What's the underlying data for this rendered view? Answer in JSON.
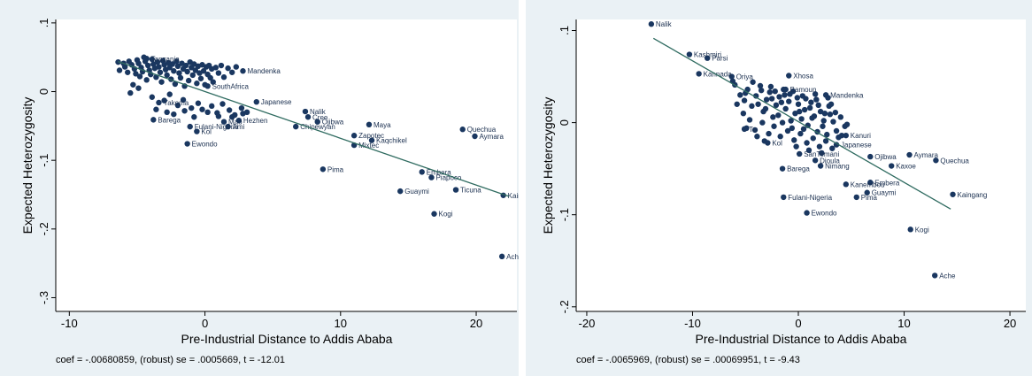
{
  "chart_data": [
    {
      "type": "scatter",
      "xlabel": "Pre-Industrial Distance to Addis Ababa",
      "ylabel": "Expected Heterozygosity",
      "xlim": [
        -11,
        23
      ],
      "ylim": [
        -0.32,
        0.105
      ],
      "xticks": [
        -10,
        0,
        10,
        20
      ],
      "xtick_labels": [
        "-10",
        "0",
        "10",
        "20"
      ],
      "yticks": [
        0.1,
        0,
        -0.1,
        -0.2,
        -0.3
      ],
      "ytick_labels": [
        ".1",
        "0",
        "-.1",
        "-.2",
        "-.3"
      ],
      "grid": false,
      "legend": "none",
      "footnote": "coef = -.00680859, (robust) se = .0005669, t = -12.01",
      "fit_line": {
        "x": [
          -6.4,
          22.4
        ],
        "y": [
          0.0436,
          -0.1524
        ]
      },
      "labeled_points": [
        {
          "label": "Tanzania",
          "x": -4.3,
          "y": 0.048
        },
        {
          "label": "Mandenka",
          "x": 2.8,
          "y": 0.03
        },
        {
          "label": "SouthAfrica",
          "x": 0.2,
          "y": 0.008
        },
        {
          "label": "Japanese",
          "x": 3.8,
          "y": -0.015
        },
        {
          "label": "Yakoma",
          "x": -3.4,
          "y": -0.016
        },
        {
          "label": "Barega",
          "x": -3.8,
          "y": -0.041
        },
        {
          "label": "Fulani-Nigeria",
          "x": -1.1,
          "y": -0.051
        },
        {
          "label": "Kol",
          "x": -0.6,
          "y": -0.058
        },
        {
          "label": "Mao",
          "x": 1.4,
          "y": -0.044
        },
        {
          "label": "Hezhen",
          "x": 2.5,
          "y": -0.042
        },
        {
          "label": "Ami",
          "x": 1.7,
          "y": -0.051
        },
        {
          "label": "Ewondo",
          "x": -1.3,
          "y": -0.076
        },
        {
          "label": "Nalik",
          "x": 7.4,
          "y": -0.029
        },
        {
          "label": "Cree",
          "x": 7.6,
          "y": -0.037
        },
        {
          "label": "Ojibwa",
          "x": 8.3,
          "y": -0.044
        },
        {
          "label": "Chipewyan",
          "x": 6.7,
          "y": -0.051
        },
        {
          "label": "Maya",
          "x": 12.1,
          "y": -0.048
        },
        {
          "label": "Zapotec",
          "x": 11.0,
          "y": -0.064
        },
        {
          "label": "Kaqchikel",
          "x": 12.3,
          "y": -0.071
        },
        {
          "label": "Mixtec",
          "x": 11.0,
          "y": -0.078
        },
        {
          "label": "Quechua",
          "x": 19.0,
          "y": -0.055
        },
        {
          "label": "Aymara",
          "x": 19.9,
          "y": -0.065
        },
        {
          "label": "Pima",
          "x": 8.7,
          "y": -0.113
        },
        {
          "label": "Embera",
          "x": 16.0,
          "y": -0.117
        },
        {
          "label": "Piapoco",
          "x": 16.7,
          "y": -0.125
        },
        {
          "label": "Guaymi",
          "x": 14.4,
          "y": -0.145
        },
        {
          "label": "Ticuna",
          "x": 18.5,
          "y": -0.143
        },
        {
          "label": "Kaingang",
          "x": 22.0,
          "y": -0.151
        },
        {
          "label": "Kogi",
          "x": 16.9,
          "y": -0.178
        },
        {
          "label": "Ache",
          "x": 21.9,
          "y": -0.24
        }
      ],
      "cluster_points": [
        [
          -6.4,
          0.043
        ],
        [
          -6.3,
          0.031
        ],
        [
          -6.0,
          0.041
        ],
        [
          -5.9,
          0.036
        ],
        [
          -5.7,
          0.028
        ],
        [
          -5.6,
          0.044
        ],
        [
          -5.4,
          0.039
        ],
        [
          -5.2,
          0.033
        ],
        [
          -5.1,
          0.026
        ],
        [
          -5.0,
          0.046
        ],
        [
          -4.9,
          0.041
        ],
        [
          -4.8,
          0.022
        ],
        [
          -4.7,
          0.035
        ],
        [
          -4.6,
          0.029
        ],
        [
          -4.5,
          0.05
        ],
        [
          -4.4,
          0.044
        ],
        [
          -4.3,
          0.017
        ],
        [
          -4.2,
          0.038
        ],
        [
          -4.1,
          0.031
        ],
        [
          -4.0,
          0.025
        ],
        [
          -3.9,
          0.047
        ],
        [
          -3.8,
          0.04
        ],
        [
          -3.7,
          0.034
        ],
        [
          -3.6,
          0.021
        ],
        [
          -3.5,
          0.043
        ],
        [
          -3.4,
          0.036
        ],
        [
          -3.3,
          0.028
        ],
        [
          -3.2,
          0.014
        ],
        [
          -3.1,
          0.045
        ],
        [
          -3.0,
          0.039
        ],
        [
          -2.9,
          0.032
        ],
        [
          -2.8,
          0.024
        ],
        [
          -2.7,
          0.042
        ],
        [
          -2.6,
          0.035
        ],
        [
          -2.5,
          0.018
        ],
        [
          -2.4,
          0.04
        ],
        [
          -2.3,
          0.03
        ],
        [
          -2.2,
          0.011
        ],
        [
          -2.1,
          0.044
        ],
        [
          -2.0,
          0.037
        ],
        [
          -1.9,
          0.027
        ],
        [
          -1.8,
          0.02
        ],
        [
          -1.7,
          0.041
        ],
        [
          -1.6,
          0.033
        ],
        [
          -1.5,
          0.008
        ],
        [
          -1.4,
          0.038
        ],
        [
          -1.3,
          0.029
        ],
        [
          -1.2,
          0.016
        ],
        [
          -1.1,
          0.043
        ],
        [
          -1.0,
          0.035
        ],
        [
          -0.9,
          0.024
        ],
        [
          -0.8,
          0.04
        ],
        [
          -0.7,
          0.031
        ],
        [
          -0.6,
          0.012
        ],
        [
          -0.5,
          0.037
        ],
        [
          -0.4,
          0.027
        ],
        [
          -0.3,
          0.019
        ],
        [
          -0.2,
          0.039
        ],
        [
          -0.1,
          0.03
        ],
        [
          0.0,
          0.01
        ],
        [
          0.1,
          0.036
        ],
        [
          0.2,
          0.025
        ],
        [
          0.3,
          0.038
        ],
        [
          0.4,
          0.02
        ],
        [
          0.5,
          0.033
        ],
        [
          0.6,
          0.014
        ],
        [
          0.8,
          0.035
        ],
        [
          1.0,
          0.027
        ],
        [
          1.2,
          0.038
        ],
        [
          1.4,
          0.021
        ],
        [
          1.7,
          0.034
        ],
        [
          2.0,
          0.028
        ],
        [
          2.3,
          0.036
        ],
        [
          -5.3,
          0.01
        ],
        [
          -4.9,
          0.005
        ],
        [
          -5.5,
          -0.002
        ],
        [
          -3.9,
          -0.008
        ],
        [
          -3.0,
          -0.013
        ],
        [
          -2.6,
          -0.004
        ],
        [
          -2.0,
          -0.02
        ],
        [
          -1.6,
          -0.012
        ],
        [
          -1.0,
          -0.024
        ],
        [
          -0.5,
          -0.017
        ],
        [
          -0.2,
          -0.026
        ],
        [
          0.5,
          -0.021
        ],
        [
          0.9,
          -0.031
        ],
        [
          1.3,
          -0.018
        ],
        [
          1.8,
          -0.027
        ],
        [
          2.2,
          -0.034
        ],
        [
          2.7,
          -0.024
        ],
        [
          3.1,
          -0.03
        ],
        [
          -3.6,
          -0.026
        ],
        [
          -2.8,
          -0.03
        ],
        [
          -2.3,
          -0.033
        ],
        [
          -1.5,
          -0.028
        ],
        [
          -0.8,
          -0.037
        ],
        [
          0.2,
          -0.03
        ],
        [
          1.0,
          -0.036
        ],
        [
          2.0,
          -0.037
        ],
        [
          2.8,
          -0.032
        ]
      ]
    },
    {
      "type": "scatter",
      "xlabel": "Pre-Industrial Distance to Addis Ababa",
      "ylabel": "Expected Heterozygosity",
      "xlim": [
        -21,
        21.5
      ],
      "ylim": [
        -0.205,
        0.112
      ],
      "xticks": [
        -20,
        -10,
        0,
        10,
        20
      ],
      "xtick_labels": [
        "-20",
        "-10",
        "0",
        "10",
        "20"
      ],
      "yticks": [
        0.1,
        0,
        -0.1,
        -0.2
      ],
      "ytick_labels": [
        ".1",
        "0",
        "-.1",
        "-.2"
      ],
      "grid": false,
      "legend": "none",
      "footnote": "coef = -.0065969, (robust) se = .00069951, t = -9.43",
      "fit_line": {
        "x": [
          -13.7,
          14.4
        ],
        "y": [
          0.0915,
          -0.0939
        ]
      },
      "labeled_points": [
        {
          "label": "Nalik",
          "x": -13.9,
          "y": 0.107
        },
        {
          "label": "Kashmiri",
          "x": -10.3,
          "y": 0.074
        },
        {
          "label": "Parsi",
          "x": -8.6,
          "y": 0.07
        },
        {
          "label": "Kannada",
          "x": -9.4,
          "y": 0.053
        },
        {
          "label": "Oriya",
          "x": -6.3,
          "y": 0.05
        },
        {
          "label": "Xhosa",
          "x": -0.9,
          "y": 0.051
        },
        {
          "label": "Bamoun",
          "x": -1.2,
          "y": 0.036
        },
        {
          "label": "Mandenka",
          "x": 2.6,
          "y": 0.03
        },
        {
          "label": "Kanuri",
          "x": 4.5,
          "y": -0.014
        },
        {
          "label": "Japanese",
          "x": 3.6,
          "y": -0.024
        },
        {
          "label": "Tu",
          "x": -5.1,
          "y": -0.007
        },
        {
          "label": "Kol",
          "x": -2.9,
          "y": -0.022
        },
        {
          "label": "SanTemani",
          "x": 0.1,
          "y": -0.034
        },
        {
          "label": "Ojibwa",
          "x": 6.8,
          "y": -0.037
        },
        {
          "label": "Aymara",
          "x": 10.5,
          "y": -0.035
        },
        {
          "label": "Quechua",
          "x": 13.0,
          "y": -0.041
        },
        {
          "label": "Dioula",
          "x": 1.6,
          "y": -0.041
        },
        {
          "label": "Nimang",
          "x": 2.1,
          "y": -0.047
        },
        {
          "label": "Barega",
          "x": -1.5,
          "y": -0.05
        },
        {
          "label": "Kaxoe",
          "x": 8.8,
          "y": -0.047
        },
        {
          "label": "Kanembou",
          "x": 4.5,
          "y": -0.067
        },
        {
          "label": "Embera",
          "x": 6.8,
          "y": -0.065
        },
        {
          "label": "Guaymi",
          "x": 6.5,
          "y": -0.076
        },
        {
          "label": "Pima",
          "x": 5.5,
          "y": -0.081
        },
        {
          "label": "Fulani-Nigeria",
          "x": -1.4,
          "y": -0.081
        },
        {
          "label": "Kaingang",
          "x": 14.6,
          "y": -0.078
        },
        {
          "label": "Ewondo",
          "x": 0.8,
          "y": -0.098
        },
        {
          "label": "Kogi",
          "x": 10.6,
          "y": -0.116
        },
        {
          "label": "Ache",
          "x": 12.9,
          "y": -0.166
        }
      ],
      "cluster_points": [
        [
          -6.0,
          0.041
        ],
        [
          -5.5,
          0.03
        ],
        [
          -5.1,
          0.024
        ],
        [
          -4.8,
          0.036
        ],
        [
          -4.4,
          0.018
        ],
        [
          -4.0,
          0.029
        ],
        [
          -3.6,
          0.04
        ],
        [
          -3.3,
          0.012
        ],
        [
          -3.0,
          0.025
        ],
        [
          -2.7,
          0.033
        ],
        [
          -2.4,
          0.006
        ],
        [
          -2.1,
          0.019
        ],
        [
          -1.8,
          0.028
        ],
        [
          -1.5,
          0.0
        ],
        [
          -1.2,
          0.015
        ],
        [
          -0.9,
          0.023
        ],
        [
          -0.6,
          -0.006
        ],
        [
          -0.3,
          0.01
        ],
        [
          0.0,
          0.02
        ],
        [
          0.3,
          0.004
        ],
        [
          0.6,
          0.014
        ],
        [
          0.9,
          -0.003
        ],
        [
          1.2,
          0.022
        ],
        [
          1.5,
          0.007
        ],
        [
          1.8,
          -0.01
        ],
        [
          2.1,
          0.012
        ],
        [
          2.4,
          0.002
        ],
        [
          2.7,
          -0.013
        ],
        [
          3.0,
          0.009
        ],
        [
          3.3,
          0.001
        ],
        [
          3.6,
          -0.009
        ],
        [
          4.0,
          0.006
        ],
        [
          4.4,
          -0.004
        ],
        [
          -5.2,
          0.01
        ],
        [
          -4.6,
          0.003
        ],
        [
          -4.1,
          -0.008
        ],
        [
          -3.4,
          0.0
        ],
        [
          -2.8,
          -0.012
        ],
        [
          -2.3,
          -0.004
        ],
        [
          -1.7,
          -0.015
        ],
        [
          -1.0,
          -0.009
        ],
        [
          -0.4,
          -0.019
        ],
        [
          0.2,
          -0.012
        ],
        [
          0.8,
          -0.022
        ],
        [
          1.4,
          -0.017
        ],
        [
          2.0,
          -0.026
        ],
        [
          2.6,
          -0.02
        ],
        [
          3.2,
          -0.028
        ],
        [
          -3.8,
          0.02
        ],
        [
          -3.1,
          0.015
        ],
        [
          -2.5,
          0.026
        ],
        [
          -1.9,
          0.008
        ],
        [
          -1.3,
          0.03
        ],
        [
          -0.7,
          0.002
        ],
        [
          -0.1,
          0.027
        ],
        [
          0.5,
          -0.007
        ],
        [
          1.1,
          0.016
        ],
        [
          1.7,
          0.025
        ],
        [
          2.3,
          -0.004
        ],
        [
          2.9,
          0.018
        ],
        [
          3.5,
          0.011
        ],
        [
          4.1,
          -0.014
        ],
        [
          -2.2,
          0.034
        ],
        [
          -1.6,
          0.022
        ],
        [
          -0.8,
          0.031
        ],
        [
          0.1,
          0.012
        ],
        [
          0.7,
          0.026
        ],
        [
          1.3,
          0.005
        ],
        [
          1.9,
          0.019
        ],
        [
          2.5,
          0.01
        ],
        [
          3.1,
          0.02
        ],
        [
          -4.9,
          -0.006
        ],
        [
          -3.9,
          -0.015
        ],
        [
          -3.2,
          -0.02
        ],
        [
          -0.2,
          -0.026
        ],
        [
          1.0,
          -0.03
        ],
        [
          2.2,
          -0.033
        ],
        [
          3.8,
          -0.016
        ],
        [
          4.6,
          -0.002
        ],
        [
          -6.2,
          0.045
        ],
        [
          -5.8,
          0.02
        ],
        [
          -5.0,
          0.032
        ],
        [
          -4.3,
          0.044
        ],
        [
          -3.5,
          0.035
        ],
        [
          -2.6,
          0.039
        ],
        [
          -1.4,
          0.036
        ],
        [
          -0.5,
          0.034
        ],
        [
          0.4,
          0.029
        ],
        [
          1.6,
          0.031
        ],
        [
          2.8,
          0.027
        ]
      ]
    }
  ]
}
